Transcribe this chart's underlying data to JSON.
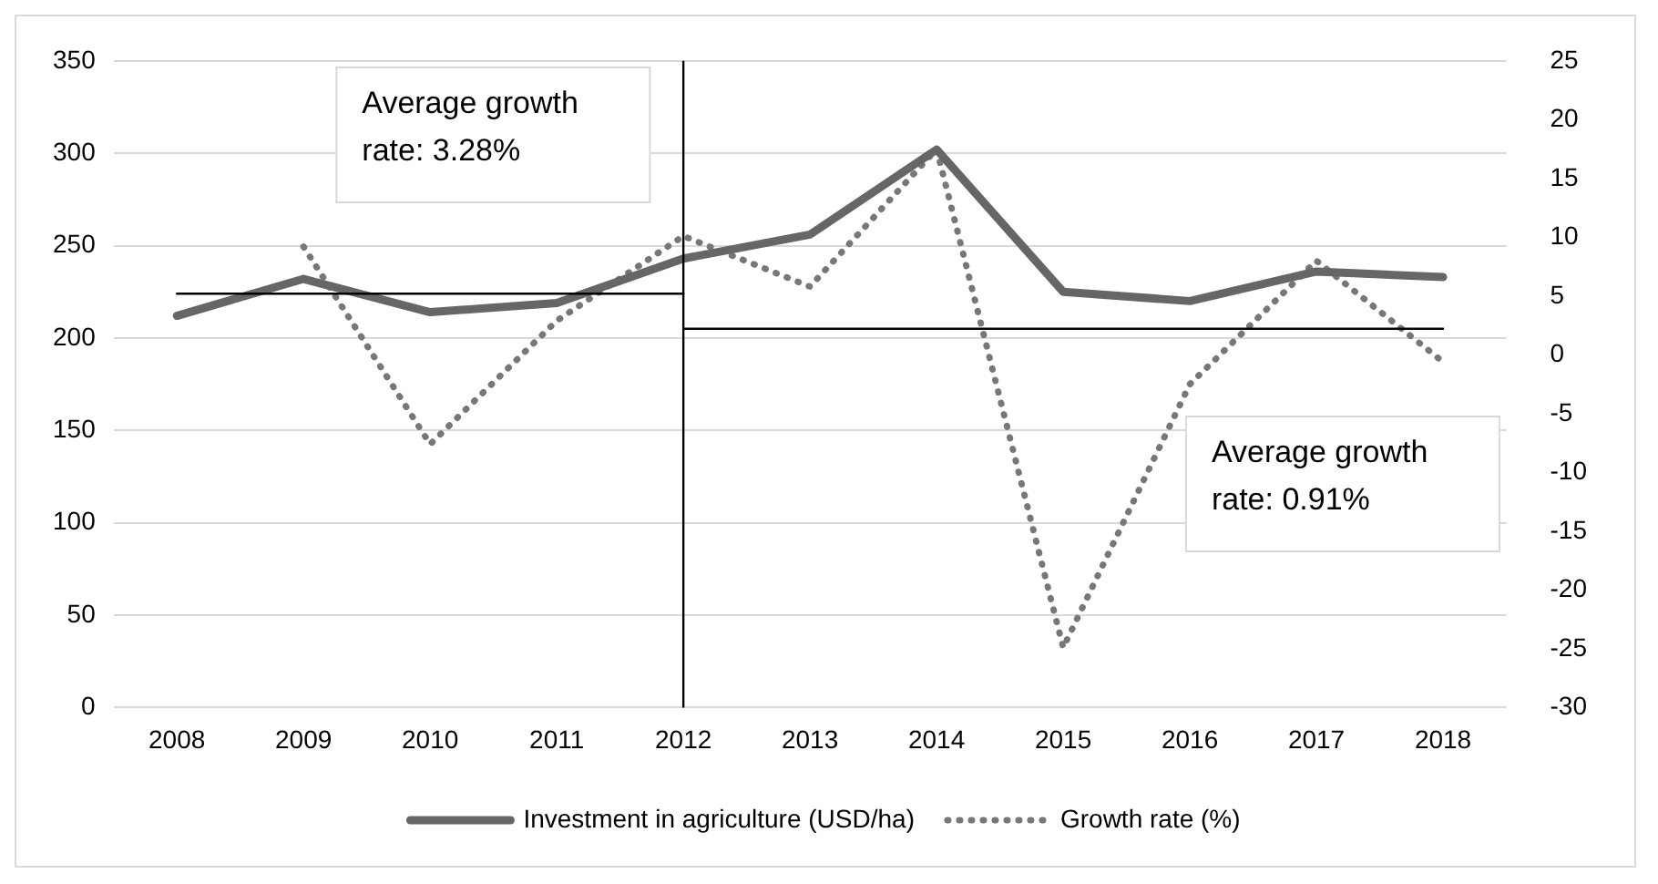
{
  "chart_data": {
    "type": "line",
    "categories": [
      "2008",
      "2009",
      "2010",
      "2011",
      "2012",
      "2013",
      "2014",
      "2015",
      "2016",
      "2017",
      "2018"
    ],
    "series": [
      {
        "name": "Investment in agriculture (USD/ha)",
        "color": "#666666",
        "line_style": "solid",
        "values": [
          212,
          232,
          214,
          219,
          243,
          256,
          302,
          225,
          220,
          236,
          233
        ]
      },
      {
        "name": "Growth rate (%)",
        "color": "#777777",
        "line_style": "dotted",
        "axis": "y2",
        "values": [
          null,
          9.2,
          -7.6,
          2.9,
          10.1,
          5.8,
          17.5,
          -24.9,
          -2.5,
          8,
          -0.6
        ]
      },
      {
        "color": "#000000",
        "line_style": "solid",
        "values": [
          224,
          224,
          224,
          224,
          224,
          null,
          null,
          null,
          null,
          null,
          null
        ]
      },
      {
        "color": "#000000",
        "line_style": "solid",
        "values": [
          null,
          null,
          null,
          null,
          205,
          205,
          205,
          205,
          205,
          205,
          205
        ]
      }
    ],
    "ref_lines": [
      {
        "axis": "x",
        "value": "2012",
        "color": "#000000"
      }
    ],
    "annotations": [
      "Average growth rate: 3.28%",
      "Average growth rate: 0.91%"
    ],
    "ylim": [
      0,
      350
    ],
    "yticks": [
      0,
      50,
      100,
      150,
      200,
      250,
      300,
      350
    ],
    "y2lim": [
      -30,
      25
    ],
    "y2ticks": [
      -30,
      -25,
      -20,
      -15,
      -10,
      -5,
      0,
      5,
      10,
      15,
      20,
      25
    ],
    "grid": "y",
    "legend": "bottom",
    "marker": "none"
  }
}
